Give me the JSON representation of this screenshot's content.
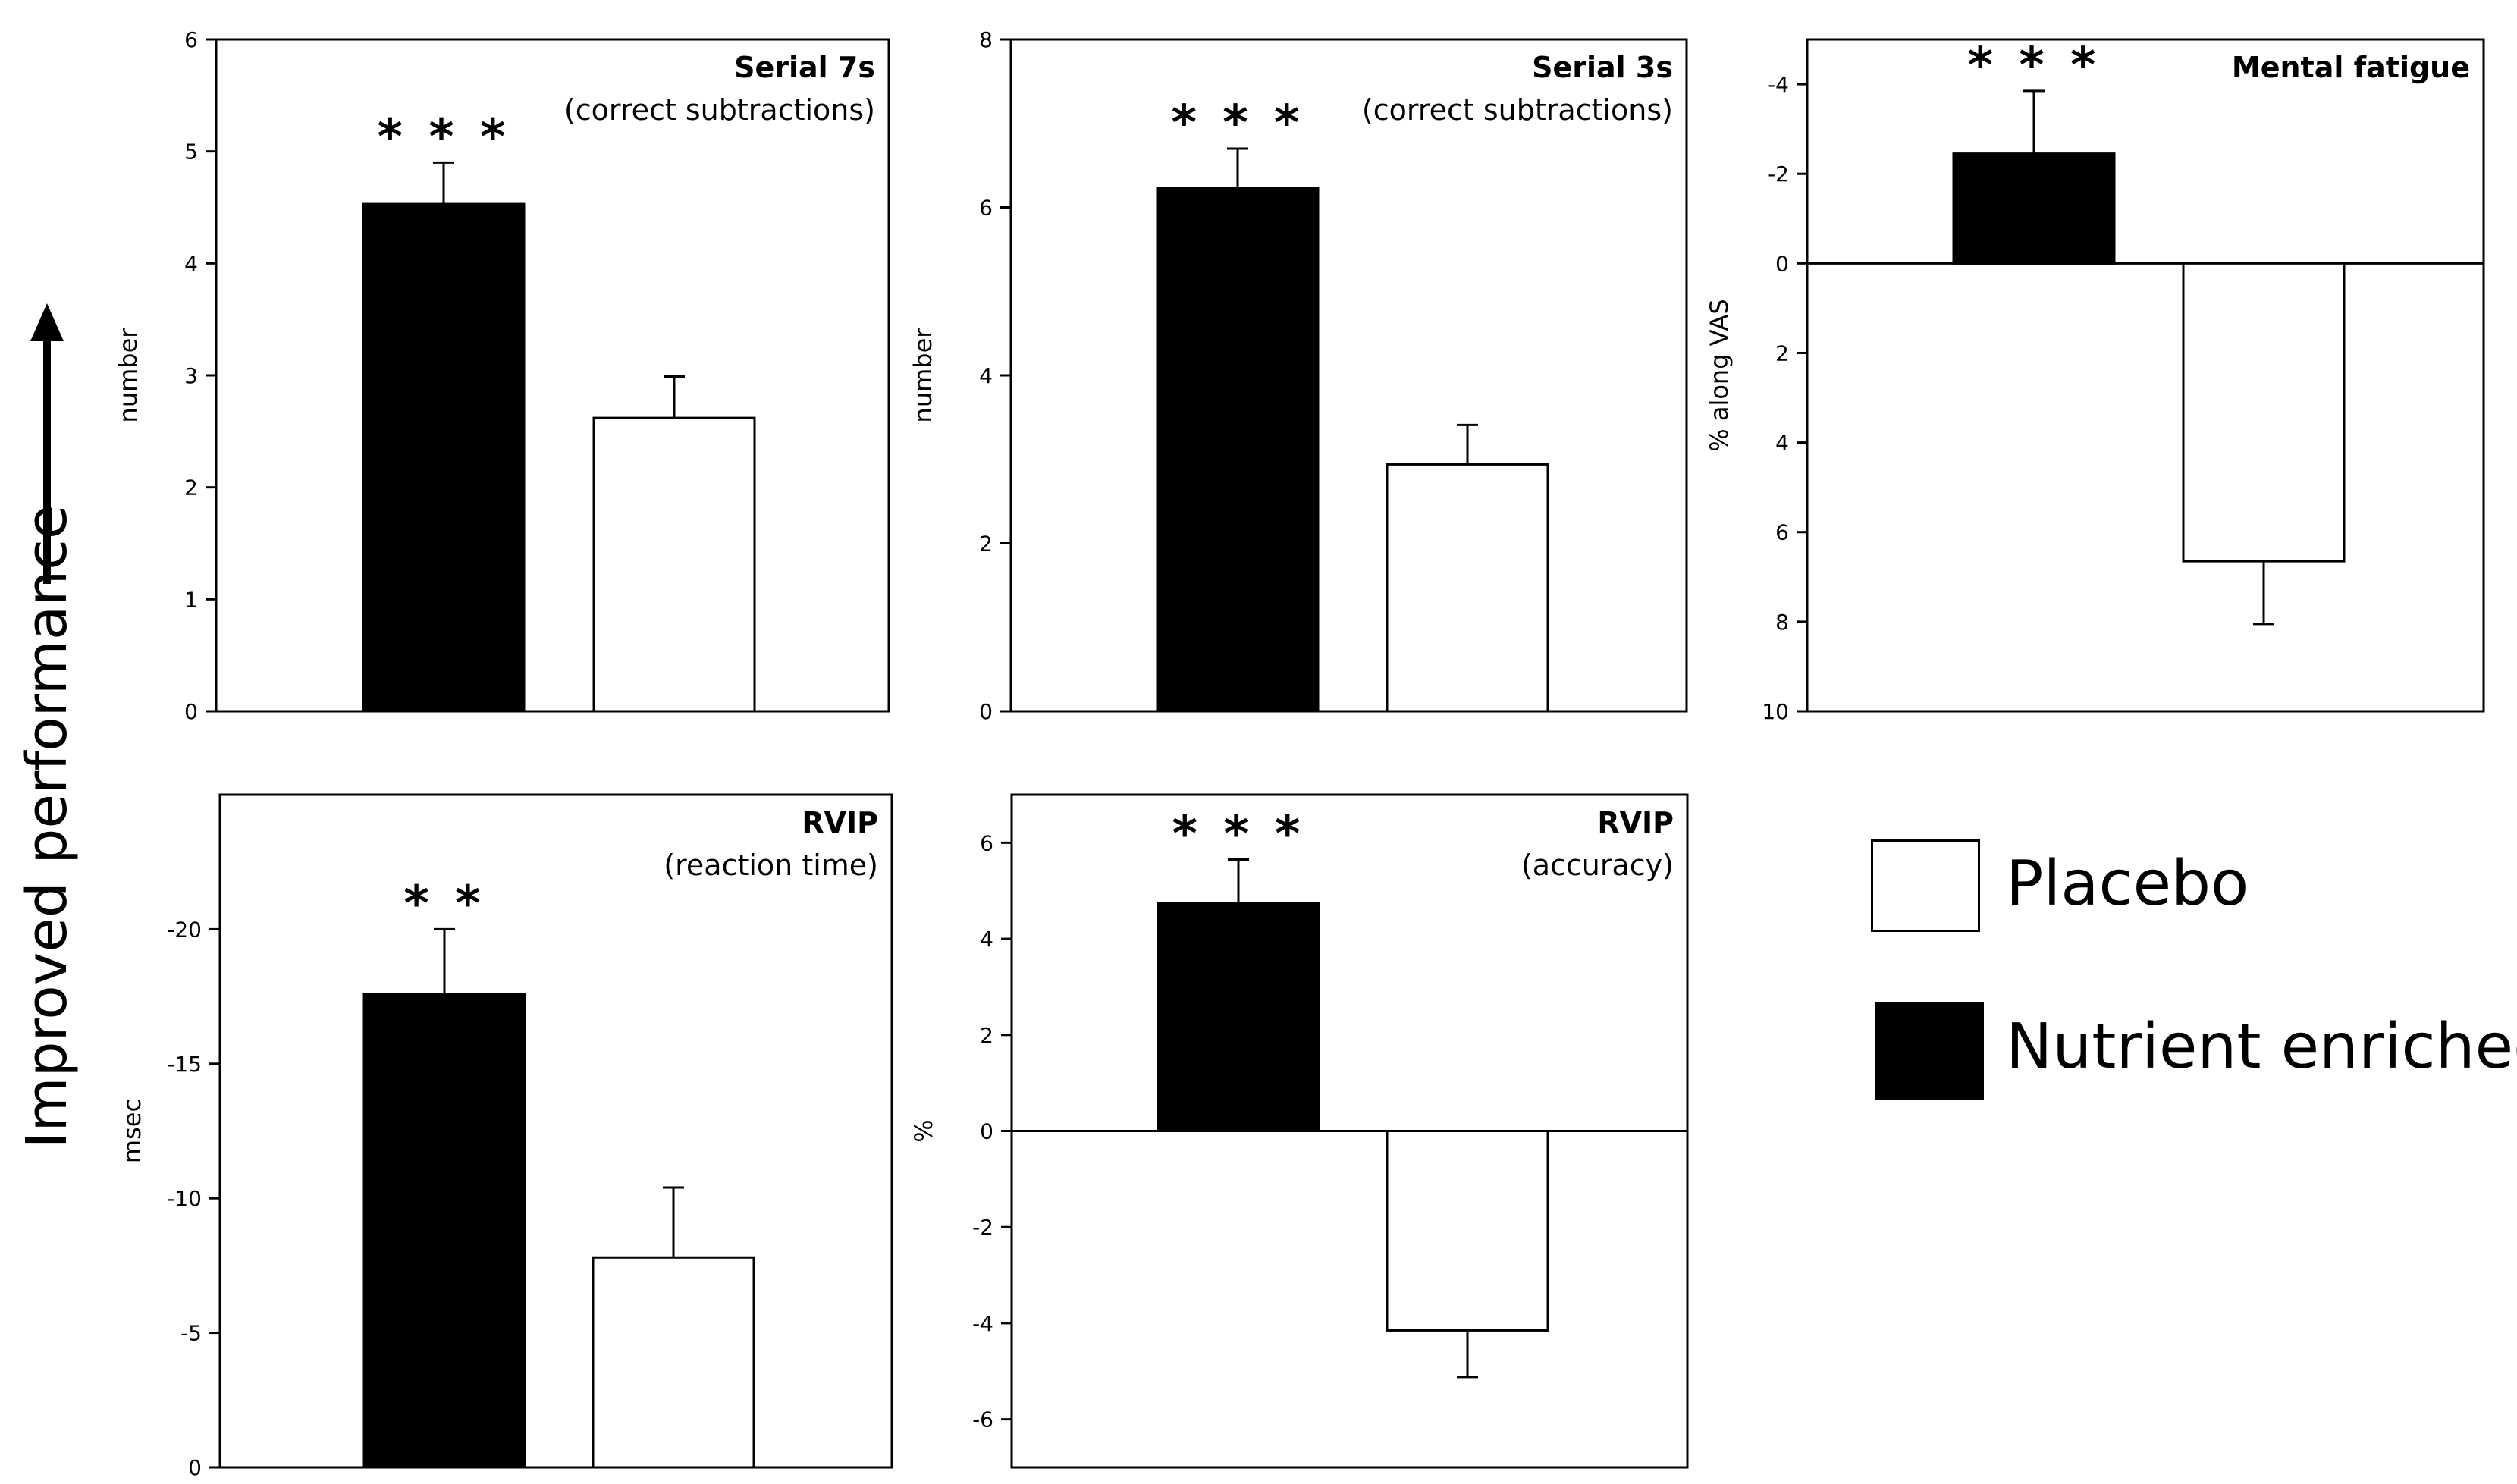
{
  "side_label": "Improved performance",
  "colors": {
    "nutrient": "#000000",
    "placebo": "#ffffff",
    "axis": "#000000"
  },
  "legend": {
    "placebo_label": "Placebo",
    "nutrient_label": "Nutrient enriched"
  },
  "chart_data": [
    {
      "type": "bar",
      "title": "Serial 7s",
      "subtitle": "(correct subtractions)",
      "ylabel": "number",
      "ylim": [
        0,
        6
      ],
      "yticks": [
        0,
        1,
        2,
        3,
        4,
        5,
        6
      ],
      "ytick_labels": [
        "0",
        "1",
        "2",
        "3",
        "4",
        "5",
        "6"
      ],
      "inverted": false,
      "categories": [
        "Nutrient enriched",
        "Placebo"
      ],
      "values": [
        4.53,
        2.62
      ],
      "errors": [
        0.37,
        0.37
      ],
      "significance": "***"
    },
    {
      "type": "bar",
      "title": "Serial 3s",
      "subtitle": "(correct subtractions)",
      "ylabel": "number",
      "ylim": [
        0,
        8
      ],
      "yticks": [
        0,
        2,
        4,
        6,
        8
      ],
      "ytick_labels": [
        "0",
        "2",
        "4",
        "6",
        "8"
      ],
      "inverted": false,
      "categories": [
        "Nutrient enriched",
        "Placebo"
      ],
      "values": [
        6.23,
        2.94
      ],
      "errors": [
        0.47,
        0.47
      ],
      "significance": "***"
    },
    {
      "type": "bar",
      "title": "Mental fatigue",
      "subtitle": "",
      "ylabel": "% along VAS",
      "ylim": [
        -5,
        10
      ],
      "yticks": [
        -4,
        -2,
        0,
        2,
        4,
        6,
        8,
        10
      ],
      "ytick_labels": [
        "-4",
        "-2",
        "0",
        "2",
        "4",
        "6",
        "8",
        "10"
      ],
      "inverted": true,
      "categories": [
        "Nutrient enriched",
        "Placebo"
      ],
      "values": [
        -2.45,
        6.65
      ],
      "errors": [
        1.4,
        1.4
      ],
      "significance": "***"
    },
    {
      "type": "bar",
      "title": "RVIP",
      "subtitle": "(reaction time)",
      "ylabel": "msec",
      "ylim": [
        -25,
        0
      ],
      "yticks": [
        -20,
        -15,
        -10,
        -5,
        0
      ],
      "ytick_labels": [
        "-20",
        "-15",
        "-10",
        "-5",
        "0"
      ],
      "inverted": true,
      "categories": [
        "Nutrient enriched",
        "Placebo"
      ],
      "values": [
        -17.6,
        -7.8
      ],
      "errors": [
        2.4,
        2.6
      ],
      "significance": "**"
    },
    {
      "type": "bar",
      "title": "RVIP",
      "subtitle": "(accuracy)",
      "ylabel": "%",
      "ylim": [
        -7,
        7
      ],
      "yticks": [
        -6,
        -4,
        -2,
        0,
        2,
        4,
        6
      ],
      "ytick_labels": [
        "-6",
        "-4",
        "-2",
        "0",
        "2",
        "4",
        "6"
      ],
      "inverted": false,
      "categories": [
        "Nutrient enriched",
        "Placebo"
      ],
      "values": [
        4.75,
        -4.15
      ],
      "errors": [
        0.9,
        0.97
      ],
      "significance": "***"
    }
  ]
}
